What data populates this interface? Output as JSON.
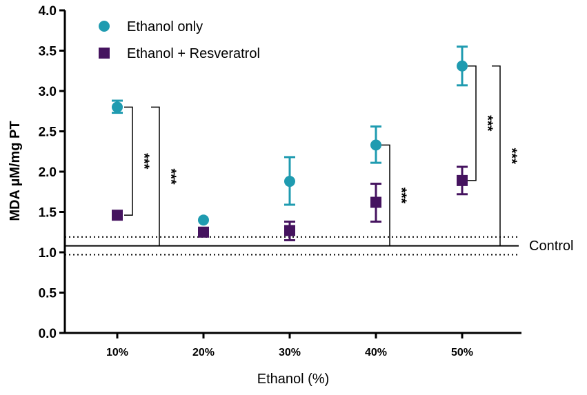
{
  "chart_data": {
    "type": "scatter",
    "xlabel": "Ethanol (%)",
    "ylabel": "MDA µM/mg PT",
    "ylim": [
      0,
      4
    ],
    "yticks": [
      "0.0",
      "0.5",
      "1.0",
      "1.5",
      "2.0",
      "2.5",
      "3.0",
      "3.5",
      "4.0"
    ],
    "yticks_values": [
      0,
      0.5,
      1.0,
      1.5,
      2.0,
      2.5,
      3.0,
      3.5,
      4.0
    ],
    "categories": [
      "10%",
      "20%",
      "30%",
      "40%",
      "50%"
    ],
    "series": [
      {
        "name": "Ethanol only",
        "marker": "circle",
        "color": "#1f9bb0",
        "values": [
          2.8,
          1.4,
          1.88,
          2.33,
          3.31
        ],
        "err_high": [
          2.88,
          null,
          2.18,
          2.56,
          3.55
        ],
        "err_low": [
          2.73,
          null,
          1.59,
          2.11,
          3.07
        ]
      },
      {
        "name": "Ethanol + Resveratrol",
        "marker": "square",
        "color": "#45135f",
        "values": [
          1.46,
          1.25,
          1.27,
          1.62,
          1.89
        ],
        "err_high": [
          null,
          null,
          1.38,
          1.85,
          2.06
        ],
        "err_low": [
          null,
          null,
          1.15,
          1.38,
          1.72
        ]
      }
    ],
    "control": {
      "label": "Control",
      "mean": 1.08,
      "upper": 1.19,
      "lower": 0.97
    },
    "significance": [
      {
        "category_index": 0,
        "label": "***",
        "from": 2.8,
        "to": 1.46
      },
      {
        "category_index": 0,
        "label": "***",
        "from": 2.8,
        "to": 1.08
      },
      {
        "category_index": 3,
        "label": "***",
        "from": 2.33,
        "to": 1.08
      },
      {
        "category_index": 4,
        "label": "***",
        "from": 3.31,
        "to": 1.89
      },
      {
        "category_index": 4,
        "label": "***",
        "from": 3.31,
        "to": 1.08
      }
    ]
  }
}
